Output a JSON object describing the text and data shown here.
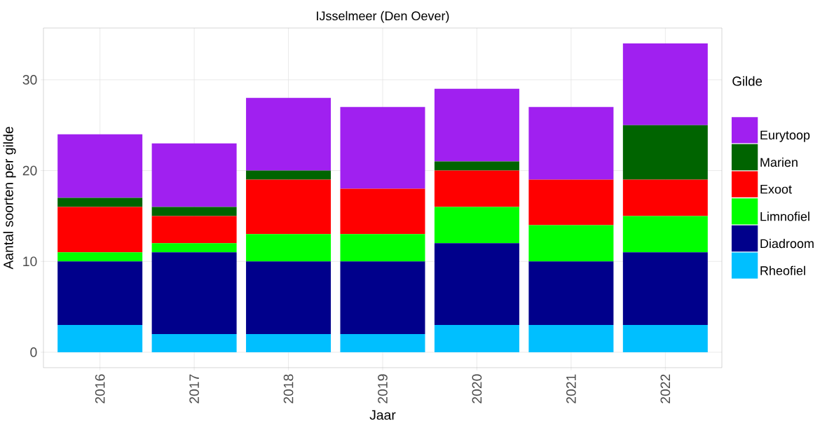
{
  "chart_data": {
    "type": "bar",
    "stacked": true,
    "title": "IJsselmeer (Den Oever)",
    "xlabel": "Jaar",
    "ylabel": "Aantal soorten per gilde",
    "legend_title": "Gilde",
    "categories": [
      "2016",
      "2017",
      "2018",
      "2019",
      "2020",
      "2021",
      "2022"
    ],
    "series": [
      {
        "name": "Rheofiel",
        "color": "#00bfff",
        "values": [
          3,
          2,
          2,
          2,
          3,
          3,
          3
        ]
      },
      {
        "name": "Diadroom",
        "color": "#00008b",
        "values": [
          7,
          9,
          8,
          8,
          9,
          7,
          8
        ]
      },
      {
        "name": "Limnofiel",
        "color": "#00ff00",
        "values": [
          1,
          1,
          3,
          3,
          4,
          4,
          4
        ]
      },
      {
        "name": "Exoot",
        "color": "#ff0000",
        "values": [
          5,
          3,
          6,
          5,
          4,
          5,
          4
        ]
      },
      {
        "name": "Marien",
        "color": "#006400",
        "values": [
          1,
          1,
          1,
          0,
          1,
          0,
          6
        ]
      },
      {
        "name": "Eurytoop",
        "color": "#a020f0",
        "values": [
          7,
          7,
          8,
          9,
          8,
          8,
          9
        ]
      }
    ],
    "ylim": [
      -1.7,
      35.7
    ],
    "yticks": [
      0,
      10,
      20,
      30
    ],
    "grid": true,
    "legend": "right"
  }
}
